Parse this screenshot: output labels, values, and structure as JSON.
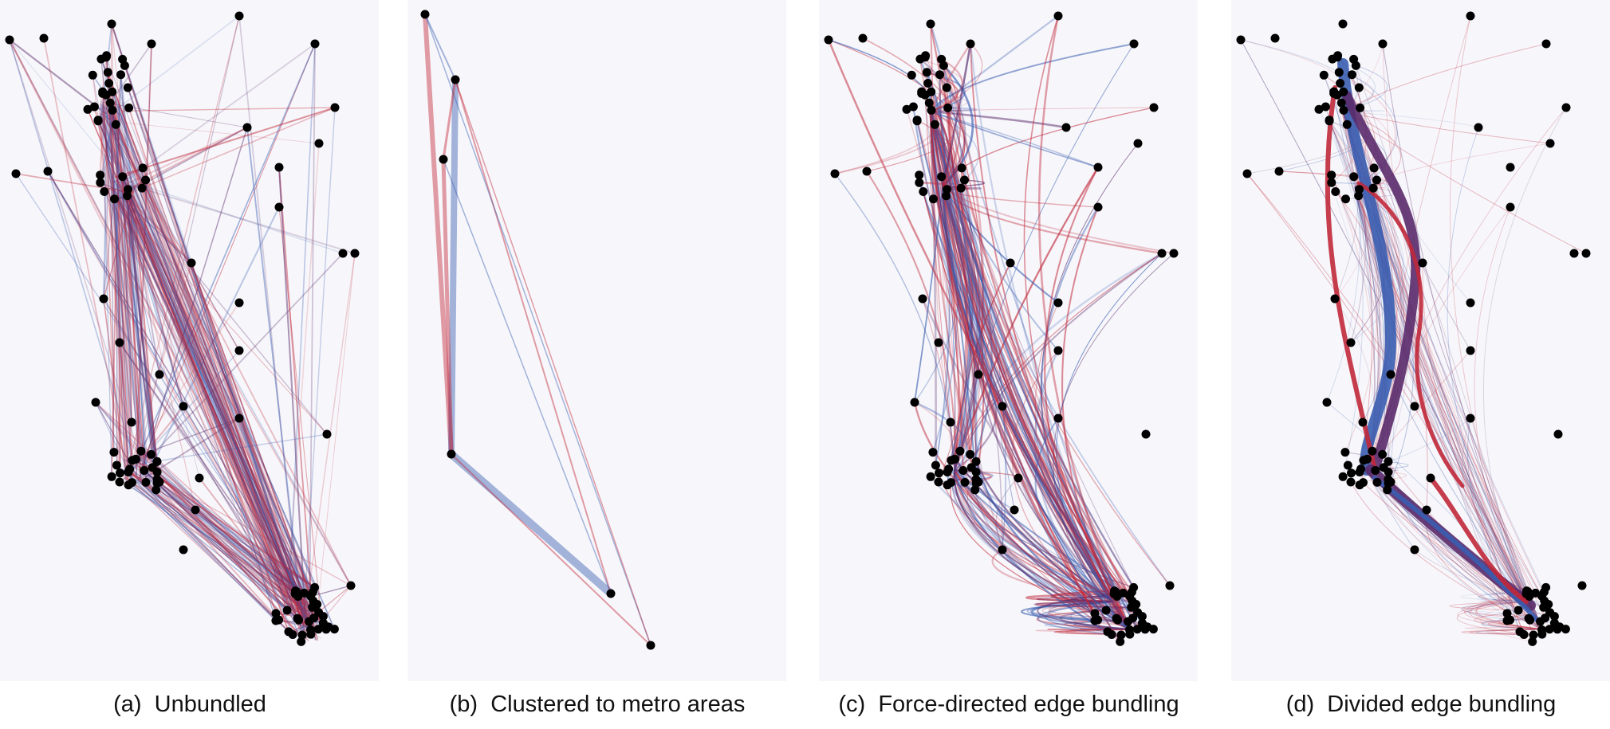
{
  "panels": [
    {
      "id": "a",
      "label": "(a)",
      "caption": "Unbundled"
    },
    {
      "id": "b",
      "label": "(b)",
      "caption": "Clustered to metro areas"
    },
    {
      "id": "c",
      "label": "(c)",
      "caption": "Force-directed edge bundling"
    },
    {
      "id": "d",
      "label": "(d)",
      "caption": "Divided edge bundling"
    }
  ],
  "colors": {
    "edge_red": "#c0283a",
    "edge_blue": "#3a5db0",
    "edge_purple": "#5a2a6a",
    "node": "#000000",
    "panel_bg": "#f7f7fb"
  }
}
